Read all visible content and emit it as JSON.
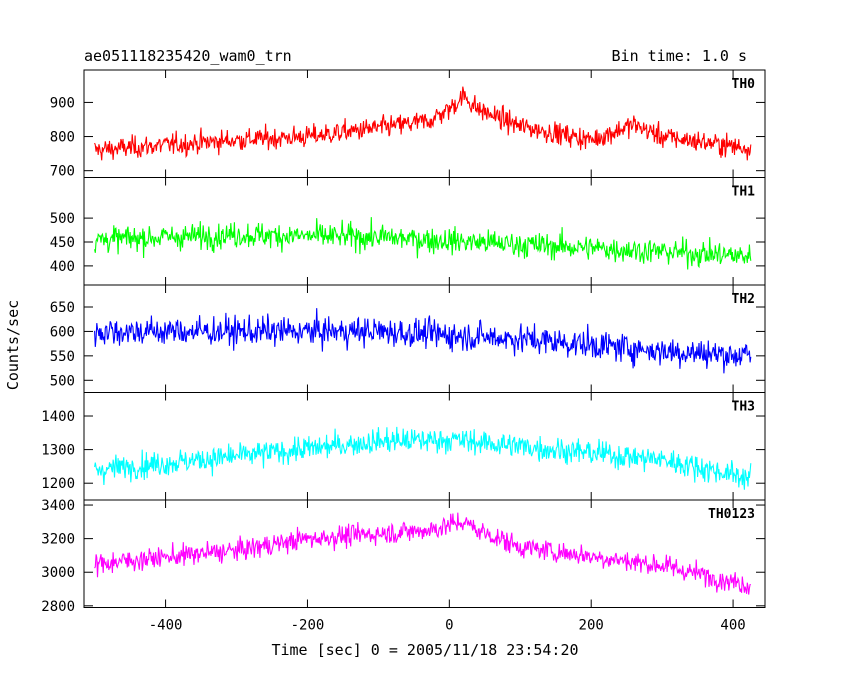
{
  "chart_data": {
    "type": "line",
    "title_left": "ae051118235420_wam0_trn",
    "title_right": "Bin time: 1.0 s",
    "xlabel": "Time [sec] 0 = 2005/11/18 23:54:20",
    "ylabel": "Counts/sec",
    "xlim": [
      -515,
      445
    ],
    "x_data_range": [
      -500,
      425
    ],
    "bin_time": 1.0,
    "x_ticks": [
      -400,
      -200,
      0,
      200,
      400
    ],
    "grid": false,
    "panels": [
      {
        "name": "TH0",
        "color": "#ff0000",
        "ylim": [
          680,
          995
        ],
        "y_ticks": [
          700,
          800,
          900
        ],
        "profile": [
          [
            -500,
            760
          ],
          [
            -400,
            775
          ],
          [
            -300,
            790
          ],
          [
            -200,
            800
          ],
          [
            -100,
            825
          ],
          [
            -30,
            845
          ],
          [
            0,
            880
          ],
          [
            20,
            920
          ],
          [
            40,
            880
          ],
          [
            100,
            830
          ],
          [
            200,
            790
          ],
          [
            260,
            835
          ],
          [
            300,
            800
          ],
          [
            425,
            765
          ]
        ],
        "noise": 30
      },
      {
        "name": "TH1",
        "color": "#00ff00",
        "ylim": [
          360,
          585
        ],
        "y_ticks": [
          400,
          450,
          500
        ],
        "profile": [
          [
            -500,
            455
          ],
          [
            -300,
            465
          ],
          [
            -100,
            460
          ],
          [
            100,
            445
          ],
          [
            300,
            430
          ],
          [
            425,
            420
          ]
        ],
        "noise": 25
      },
      {
        "name": "TH2",
        "color": "#0000ff",
        "ylim": [
          475,
          695
        ],
        "y_ticks": [
          500,
          550,
          600,
          650
        ],
        "profile": [
          [
            -500,
            600
          ],
          [
            -300,
            600
          ],
          [
            -100,
            600
          ],
          [
            100,
            585
          ],
          [
            300,
            560
          ],
          [
            425,
            550
          ]
        ],
        "noise": 28
      },
      {
        "name": "TH3",
        "color": "#00ffff",
        "ylim": [
          1150,
          1470
        ],
        "y_ticks": [
          1200,
          1300,
          1400
        ],
        "profile": [
          [
            -500,
            1240
          ],
          [
            -300,
            1280
          ],
          [
            -100,
            1325
          ],
          [
            0,
            1330
          ],
          [
            100,
            1310
          ],
          [
            300,
            1270
          ],
          [
            425,
            1215
          ]
        ],
        "noise": 35
      },
      {
        "name": "TH0123",
        "color": "#ff00ff",
        "ylim": [
          2790,
          3430
        ],
        "y_ticks": [
          2800,
          3000,
          3200,
          3400
        ],
        "profile": [
          [
            -500,
            3050
          ],
          [
            -300,
            3130
          ],
          [
            -200,
            3200
          ],
          [
            -100,
            3230
          ],
          [
            -30,
            3250
          ],
          [
            20,
            3300
          ],
          [
            40,
            3250
          ],
          [
            100,
            3150
          ],
          [
            300,
            3040
          ],
          [
            425,
            2920
          ]
        ],
        "noise": 60
      }
    ]
  }
}
